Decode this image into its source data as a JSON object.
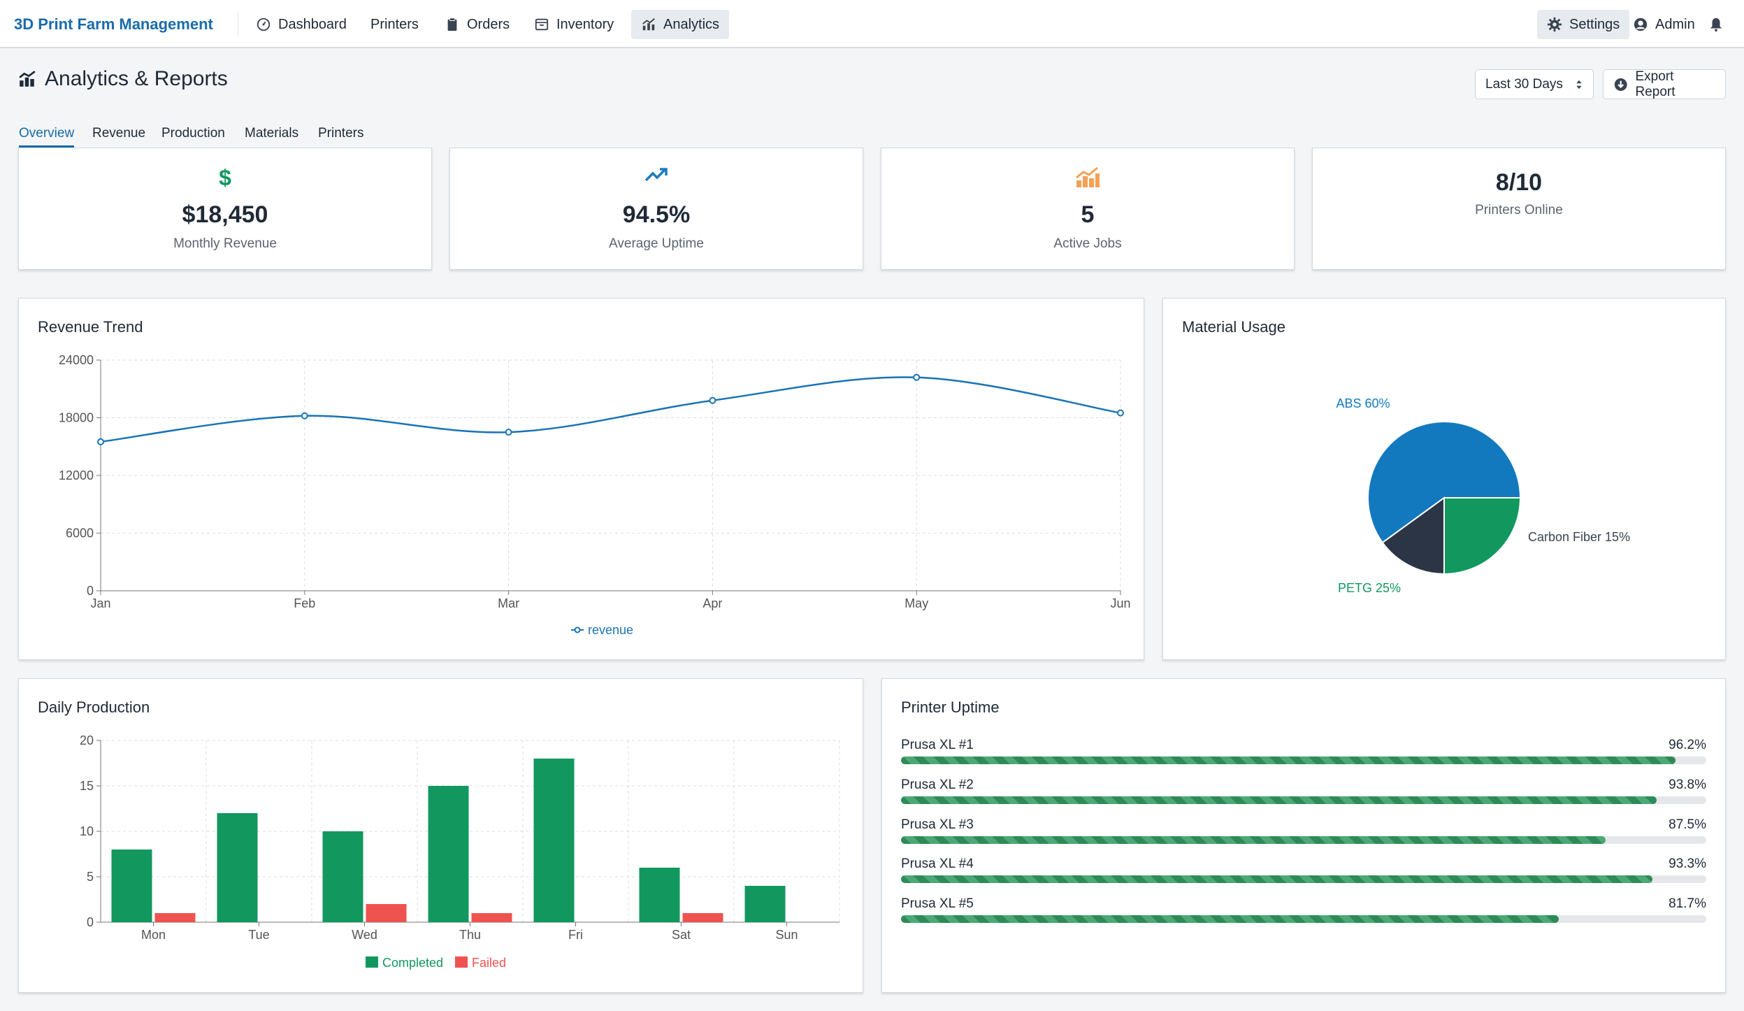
{
  "app": {
    "title": "3D Print Farm Management"
  },
  "nav": {
    "items": [
      {
        "label": "Dashboard",
        "icon": "dashboard-icon"
      },
      {
        "label": "Printers",
        "icon": "printer-icon"
      },
      {
        "label": "Orders",
        "icon": "clipboard-icon"
      },
      {
        "label": "Inventory",
        "icon": "box-icon"
      },
      {
        "label": "Analytics",
        "icon": "chart-icon",
        "active": true
      }
    ],
    "settings": "Settings",
    "user": "Admin"
  },
  "page": {
    "title": "Analytics & Reports",
    "range": "Last 30 Days",
    "export": "Export Report"
  },
  "tabs": [
    {
      "label": "Overview",
      "active": true
    },
    {
      "label": "Revenue"
    },
    {
      "label": "Production"
    },
    {
      "label": "Materials"
    },
    {
      "label": "Printers"
    }
  ],
  "stats": [
    {
      "value": "$18,450",
      "label": "Monthly Revenue",
      "icon": "dollar-icon",
      "color": "#12985f"
    },
    {
      "value": "94.5%",
      "label": "Average Uptime",
      "icon": "trending-up-icon",
      "color": "#1a7bbf"
    },
    {
      "value": "5",
      "label": "Active Jobs",
      "icon": "chart-up-icon",
      "color": "#f5a155"
    },
    {
      "value": "8/10",
      "label": "Printers Online",
      "icon": "",
      "color": ""
    }
  ],
  "panels": {
    "revenue": "Revenue Trend",
    "materials": "Material Usage",
    "production": "Daily Production",
    "uptime": "Printer Uptime"
  },
  "chart_data": [
    {
      "type": "line",
      "title": "Revenue Trend",
      "x": [
        "Jan",
        "Feb",
        "Mar",
        "Apr",
        "May",
        "Jun"
      ],
      "series": [
        {
          "name": "revenue",
          "values": [
            15500,
            18200,
            16500,
            19800,
            22200,
            18500
          ],
          "color": "#1a73b5"
        }
      ],
      "ylim": [
        0,
        24000
      ],
      "yticks": [
        "0",
        "6000",
        "12000",
        "18000",
        "24000"
      ],
      "grid": true,
      "legend": "bottom"
    },
    {
      "type": "pie",
      "title": "Material Usage",
      "slices": [
        {
          "label": "ABS 60%",
          "value": 60,
          "color": "#1379be"
        },
        {
          "label": "Carbon Fiber 15%",
          "value": 15,
          "color": "#2b3545"
        },
        {
          "label": "PETG 25%",
          "value": 25,
          "color": "#12985f"
        }
      ]
    },
    {
      "type": "bar",
      "title": "Daily Production",
      "categories": [
        "Mon",
        "Tue",
        "Wed",
        "Thu",
        "Fri",
        "Sat",
        "Sun"
      ],
      "series": [
        {
          "name": "Completed",
          "values": [
            8,
            12,
            10,
            15,
            18,
            6,
            4
          ],
          "color": "#12985f"
        },
        {
          "name": "Failed",
          "values": [
            1,
            0,
            2,
            1,
            0,
            1,
            0
          ],
          "color": "#ef5350"
        }
      ],
      "ylim": [
        0,
        20
      ],
      "yticks": [
        "0",
        "5",
        "10",
        "15",
        "20"
      ],
      "grid": true,
      "legend": "bottom"
    }
  ],
  "uptime": [
    {
      "name": "Prusa XL #1",
      "value": "96.2%",
      "pct": 96.2
    },
    {
      "name": "Prusa XL #2",
      "value": "93.8%",
      "pct": 93.8
    },
    {
      "name": "Prusa XL #3",
      "value": "87.5%",
      "pct": 87.5
    },
    {
      "name": "Prusa XL #4",
      "value": "93.3%",
      "pct": 93.3
    },
    {
      "name": "Prusa XL #5",
      "value": "81.7%",
      "pct": 81.7
    }
  ]
}
